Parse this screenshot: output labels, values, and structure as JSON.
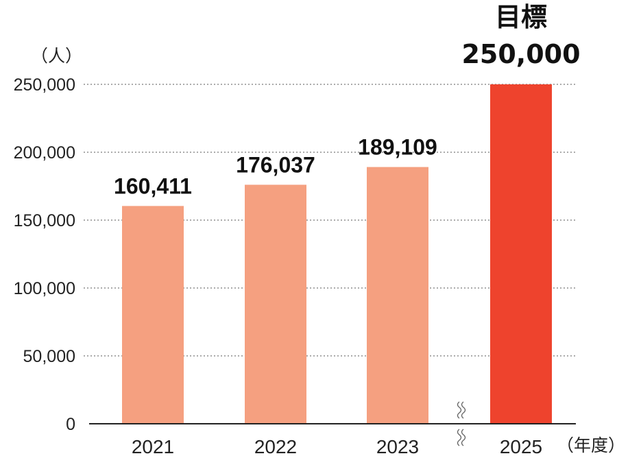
{
  "chart_data": {
    "type": "bar",
    "y_unit": "（人）",
    "x_unit": "（年度）",
    "ylim": [
      0,
      250000
    ],
    "y_ticks": [
      0,
      50000,
      100000,
      150000,
      200000,
      250000
    ],
    "y_tick_labels": [
      "0",
      "50,000",
      "100,000",
      "150,000",
      "200,000",
      "250,000"
    ],
    "grid": "horizontal-dotted",
    "axis_break": "between 2023 and 2025",
    "categories": [
      "2021",
      "2022",
      "2023",
      "2025"
    ],
    "values": [
      160411,
      176037,
      189109,
      250000
    ],
    "data_labels": [
      "160,411",
      "176,037",
      "189,109",
      "250,000"
    ],
    "target_caption": "目標",
    "colors": [
      "#f5a080",
      "#f5a080",
      "#f5a080",
      "#ee432d"
    ]
  }
}
